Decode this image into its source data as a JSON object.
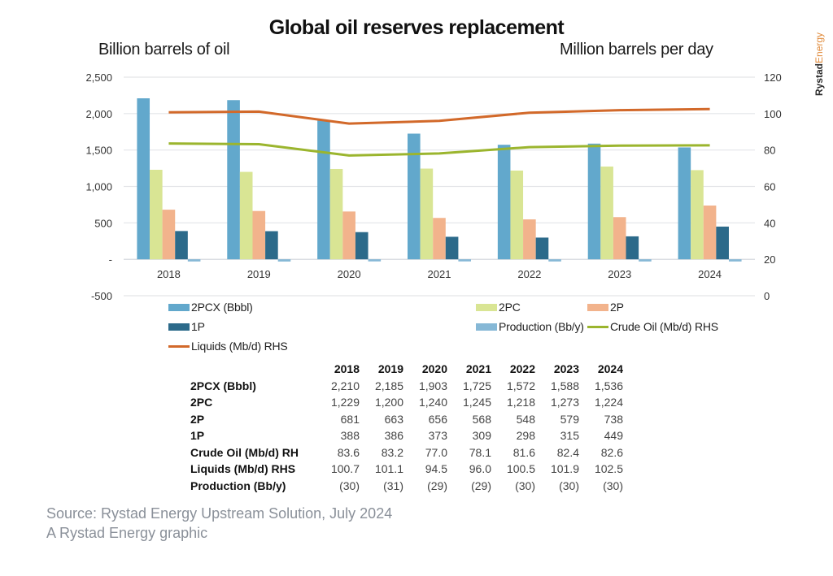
{
  "chart_data": {
    "type": "bar",
    "title": "Global oil reserves replacement",
    "ylabel": "Billion barrels of oil",
    "y2label": "Million barrels per day",
    "categories": [
      "2018",
      "2019",
      "2020",
      "2021",
      "2022",
      "2023",
      "2024"
    ],
    "ylim": [
      -500,
      2500
    ],
    "yticks": [
      -500,
      0,
      500,
      1000,
      1500,
      2000,
      2500
    ],
    "ytick_labels": [
      "-500",
      "-",
      "500",
      "1,000",
      "1,500",
      "2,000",
      "2,500"
    ],
    "y2lim": [
      0,
      120
    ],
    "y2ticks": [
      0,
      20,
      40,
      60,
      80,
      100,
      120
    ],
    "y2tick_labels": [
      "0",
      "20",
      "40",
      "60",
      "80",
      "100",
      "120"
    ],
    "grid": true,
    "legend_position": "bottom",
    "series": [
      {
        "name": "2PCX (Bbbl)",
        "type": "bar",
        "axis": "left",
        "color": "#62a8cc",
        "values": [
          2210,
          2185,
          1903,
          1725,
          1572,
          1588,
          1536
        ],
        "labels": [
          "2,210",
          "2,185",
          "1,903",
          "1,725",
          "1,572",
          "1,588",
          "1,536"
        ]
      },
      {
        "name": "2PC",
        "type": "bar",
        "axis": "left",
        "color": "#d9e594",
        "values": [
          1229,
          1200,
          1240,
          1245,
          1218,
          1273,
          1224
        ],
        "labels": [
          "1,229",
          "1,200",
          "1,240",
          "1,245",
          "1,218",
          "1,273",
          "1,224"
        ]
      },
      {
        "name": "2P",
        "type": "bar",
        "axis": "left",
        "color": "#f2b38c",
        "values": [
          681,
          663,
          656,
          568,
          548,
          579,
          738
        ],
        "labels": [
          "681",
          "663",
          "656",
          "568",
          "548",
          "579",
          "738"
        ]
      },
      {
        "name": "1P",
        "type": "bar",
        "axis": "left",
        "color": "#2c6a8a",
        "values": [
          388,
          386,
          373,
          309,
          298,
          315,
          449
        ],
        "labels": [
          "388",
          "386",
          "373",
          "309",
          "298",
          "315",
          "449"
        ]
      },
      {
        "name": "Production (Bb/y)",
        "type": "bar",
        "axis": "left",
        "color": "#86b8d6",
        "values": [
          -30,
          -31,
          -29,
          -29,
          -30,
          -30,
          -30
        ],
        "labels": [
          "(30)",
          "(31)",
          "(29)",
          "(29)",
          "(30)",
          "(30)",
          "(30)"
        ]
      },
      {
        "name": "Crude Oil (Mb/d) RHS",
        "table_label": "Crude Oil (Mb/d) RH",
        "type": "line",
        "axis": "right",
        "color": "#9bb52e",
        "values": [
          83.6,
          83.2,
          77.0,
          78.1,
          81.6,
          82.4,
          82.6
        ],
        "labels": [
          "83.6",
          "83.2",
          "77.0",
          "78.1",
          "81.6",
          "82.4",
          "82.6"
        ]
      },
      {
        "name": "Liquids (Mb/d) RHS",
        "type": "line",
        "axis": "right",
        "color": "#d2692a",
        "values": [
          100.7,
          101.1,
          94.5,
          96.0,
          100.5,
          101.9,
          102.5
        ],
        "labels": [
          "100.7",
          "101.1",
          "94.5",
          "96.0",
          "100.5",
          "101.9",
          "102.5"
        ]
      }
    ],
    "legend_order": [
      "2PCX (Bbbl)",
      "2PC",
      "2P",
      "1P",
      "Production (Bb/y)",
      "Crude Oil (Mb/d) RHS",
      "Liquids (Mb/d) RHS"
    ],
    "table": {
      "columns": [
        "2018",
        "2019",
        "2020",
        "2021",
        "2022",
        "2023",
        "2024"
      ],
      "rows": [
        {
          "label": "2PCX (Bbbl)",
          "values": [
            "2,210",
            "2,185",
            "1,903",
            "1,725",
            "1,572",
            "1,588",
            "1,536"
          ]
        },
        {
          "label": "2PC",
          "values": [
            "1,229",
            "1,200",
            "1,240",
            "1,245",
            "1,218",
            "1,273",
            "1,224"
          ]
        },
        {
          "label": "2P",
          "values": [
            "681",
            "663",
            "656",
            "568",
            "548",
            "579",
            "738"
          ]
        },
        {
          "label": "1P",
          "values": [
            "388",
            "386",
            "373",
            "309",
            "298",
            "315",
            "449"
          ]
        },
        {
          "label": "Crude Oil (Mb/d) RH",
          "values": [
            "83.6",
            "83.2",
            "77.0",
            "78.1",
            "81.6",
            "82.4",
            "82.6"
          ]
        },
        {
          "label": "Liquids (Mb/d) RHS",
          "values": [
            "100.7",
            "101.1",
            "94.5",
            "96.0",
            "100.5",
            "101.9",
            "102.5"
          ]
        },
        {
          "label": "Production (Bb/y)",
          "values": [
            "(30)",
            "(31)",
            "(29)",
            "(29)",
            "(30)",
            "(30)",
            "(30)"
          ]
        }
      ]
    }
  },
  "header": {
    "title": "Global oil reserves replacement",
    "left_axis_label": "Billion barrels of oil",
    "right_axis_label": "Million barrels per day"
  },
  "brand": {
    "part1": "Rystad",
    "part2": "Energy"
  },
  "footer": {
    "source": "Source: Rystad Energy Upstream Solution, July 2024",
    "credit": "A Rystad Energy graphic"
  }
}
